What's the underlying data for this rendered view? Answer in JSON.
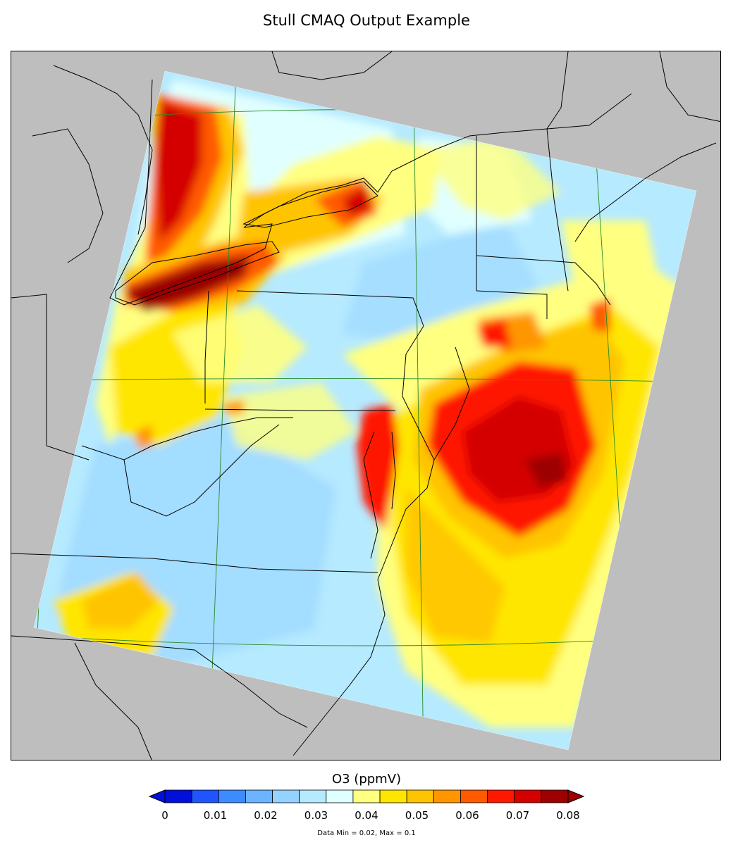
{
  "title": "Stull CMAQ Output Example",
  "colorbar": {
    "label": "O3 (ppmV)",
    "tick_labels": [
      "0",
      "0.01",
      "0.02",
      "0.03",
      "0.04",
      "0.05",
      "0.06",
      "0.07",
      "0.08"
    ],
    "colors": [
      "#0010d8",
      "#2054ff",
      "#3c8cff",
      "#6cb4ff",
      "#94d2ff",
      "#b6eaff",
      "#e0ffff",
      "#ffff80",
      "#ffe600",
      "#ffc400",
      "#ff9600",
      "#ff5a00",
      "#ff1800",
      "#d40000",
      "#9c0000"
    ],
    "under_color": "#0010d8",
    "over_color": "#9c0000"
  },
  "data_range_text": "Data Min = 0.02, Max = 0.1",
  "map": {
    "background_color": "#bebebe",
    "domain_fill_color": "#b6eaff",
    "graticule_color": "#2a8a2a",
    "boundary_color": "#000000"
  }
}
